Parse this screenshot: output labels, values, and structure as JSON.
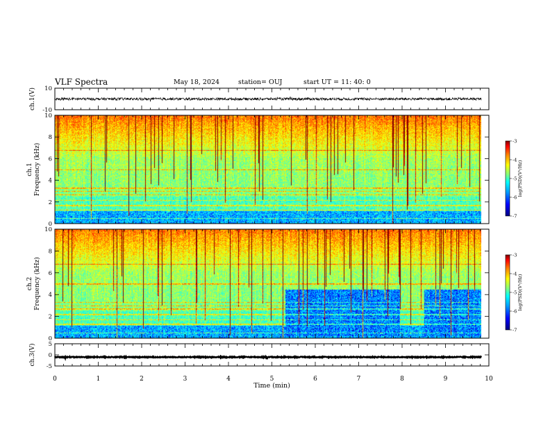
{
  "header": {
    "title": "VLF Spectra",
    "date": "May 18, 2024",
    "station": "station= OUJ",
    "start": "start UT =  11: 40: 0"
  },
  "colors": {
    "colormap": [
      "#000080",
      "#0000ff",
      "#00a0ff",
      "#00ffff",
      "#80ff80",
      "#ffff00",
      "#ff8000",
      "#ff0000",
      "#800000"
    ],
    "trace": "#000000",
    "background": "#ffffff"
  },
  "chart_data": [
    {
      "type": "line",
      "name": "ch1-waveform",
      "ylabel": "ch.1(V)",
      "ylim": [
        -10,
        10
      ],
      "yticks": [
        "10",
        "-10"
      ],
      "xlim": [
        0,
        10
      ],
      "series": [
        {
          "baseline": 0.0,
          "amplitude": 1.2
        }
      ]
    },
    {
      "type": "heatmap",
      "name": "ch1-spectrogram",
      "ylabel": "ch.1\nFrequency (kHz)",
      "ylim": [
        0,
        10
      ],
      "yticks": [
        "0",
        "2",
        "4",
        "6",
        "8",
        "10"
      ],
      "xlim": [
        0,
        10
      ],
      "data_end_min": 9.83,
      "colorbar": {
        "label": "log(PSD)(V²/Hz)",
        "range": [
          -7,
          -3
        ],
        "ticks": [
          "-3",
          "-4",
          "-5",
          "-6",
          "-7"
        ]
      },
      "quiet_intervals_min": []
    },
    {
      "type": "heatmap",
      "name": "ch2-spectrogram",
      "ylabel": "ch.2\nFrequency (kHz)",
      "ylim": [
        0,
        10
      ],
      "yticks": [
        "0",
        "2",
        "4",
        "6",
        "8",
        "10"
      ],
      "xlim": [
        0,
        10
      ],
      "data_end_min": 9.83,
      "colorbar": {
        "label": "log(PSD)(V²/Hz)",
        "range": [
          -7,
          -3
        ],
        "ticks": [
          "-3",
          "-4",
          "-5",
          "-6",
          "-7"
        ]
      },
      "quiet_intervals_min": [
        [
          5.3,
          7.95
        ],
        [
          8.5,
          9.83
        ]
      ]
    },
    {
      "type": "line",
      "name": "ch3-waveform",
      "ylabel": "ch.3(V)",
      "ylim": [
        -5,
        5
      ],
      "yticks": [
        "5",
        "0",
        "-5"
      ],
      "xlim": [
        0,
        10
      ],
      "series": [
        {
          "baseline": -1.0,
          "amplitude": 0.2
        }
      ]
    }
  ],
  "xaxis": {
    "label": "Time (min)",
    "ticks": [
      "0",
      "1",
      "2",
      "3",
      "4",
      "5",
      "6",
      "7",
      "8",
      "9",
      "10"
    ]
  }
}
